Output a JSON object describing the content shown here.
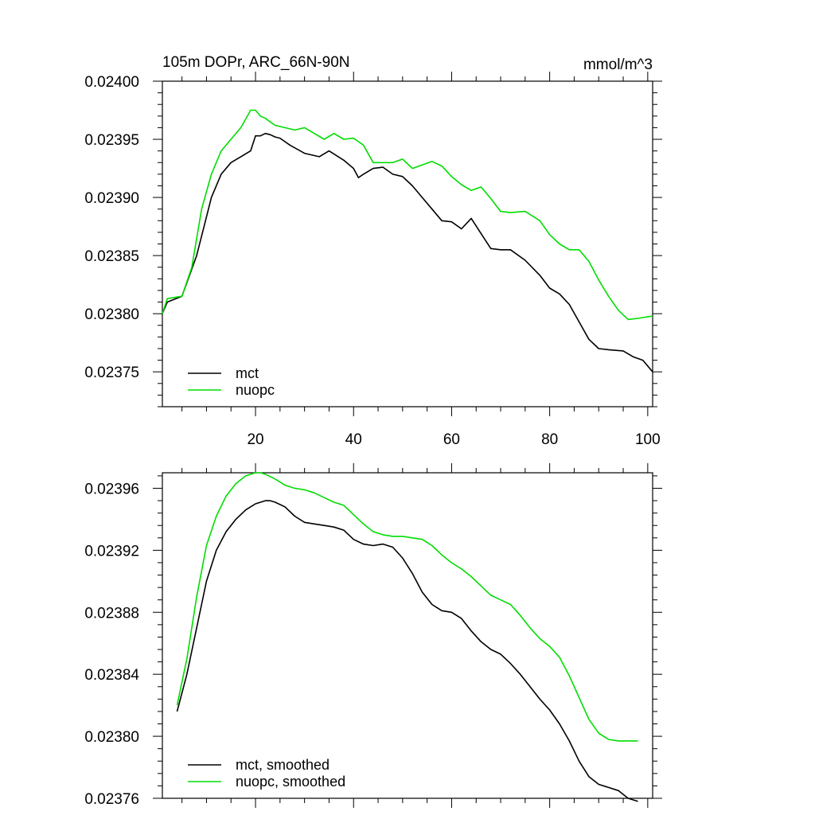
{
  "chart_data": [
    {
      "type": "line",
      "title": "105m DOPr, ARC_66N-90N",
      "units": "mmol/m^3",
      "xlabel": "",
      "ylabel": "",
      "xlim": [
        1,
        101
      ],
      "ylim": [
        0.02372,
        0.024
      ],
      "x_ticks": [
        "20",
        "40",
        "60",
        "80",
        "100"
      ],
      "y_ticks": [
        "0.02400",
        "0.02395",
        "0.02390",
        "0.02385",
        "0.02380",
        "0.02375"
      ],
      "legend": [
        "mct",
        "nuopc"
      ],
      "legend_position": "bottom-left",
      "series": [
        {
          "name": "mct",
          "color": "#000000",
          "x": [
            1,
            2,
            5,
            8,
            11,
            13,
            15,
            17,
            19,
            20,
            21,
            22,
            23,
            24,
            25,
            27,
            30,
            33,
            35,
            38,
            40,
            41,
            42,
            44,
            46,
            48,
            50,
            52,
            54,
            56,
            58,
            60,
            62,
            64,
            66,
            68,
            70,
            72,
            75,
            78,
            80,
            82,
            84,
            86,
            88,
            90,
            92,
            95,
            97,
            99,
            101
          ],
          "values": [
            0.0238,
            0.02381,
            0.023815,
            0.02385,
            0.0239,
            0.02392,
            0.02393,
            0.023935,
            0.02394,
            0.023953,
            0.023953,
            0.023955,
            0.023954,
            0.023952,
            0.023951,
            0.023945,
            0.023938,
            0.023935,
            0.02394,
            0.023932,
            0.023925,
            0.023917,
            0.02392,
            0.023925,
            0.023926,
            0.02392,
            0.023918,
            0.02391,
            0.0239,
            0.02389,
            0.02388,
            0.023879,
            0.023873,
            0.023882,
            0.023869,
            0.023856,
            0.023855,
            0.023855,
            0.023846,
            0.023833,
            0.023822,
            0.023817,
            0.023808,
            0.023793,
            0.023778,
            0.02377,
            0.023769,
            0.023768,
            0.023763,
            0.02376,
            0.02375
          ]
        },
        {
          "name": "nuopc",
          "color": "#00dd00",
          "x": [
            1,
            2,
            5,
            7,
            9,
            11,
            13,
            15,
            17,
            19,
            20,
            21,
            22,
            24,
            26,
            28,
            30,
            32,
            34,
            36,
            38,
            40,
            42,
            44,
            46,
            48,
            50,
            52,
            54,
            56,
            58,
            60,
            62,
            64,
            66,
            68,
            70,
            72,
            75,
            78,
            80,
            82,
            84,
            86,
            88,
            90,
            92,
            94,
            96,
            98,
            101
          ],
          "values": [
            0.0238,
            0.023813,
            0.023815,
            0.02384,
            0.02389,
            0.02392,
            0.02394,
            0.02395,
            0.02396,
            0.023975,
            0.023975,
            0.02397,
            0.023968,
            0.023962,
            0.02396,
            0.023958,
            0.02396,
            0.023955,
            0.02395,
            0.023955,
            0.02395,
            0.023951,
            0.023945,
            0.02393,
            0.02393,
            0.02393,
            0.023933,
            0.023925,
            0.023928,
            0.023931,
            0.023927,
            0.023918,
            0.023911,
            0.023906,
            0.023909,
            0.023899,
            0.023888,
            0.023887,
            0.023888,
            0.02388,
            0.023868,
            0.02386,
            0.023855,
            0.023855,
            0.023845,
            0.023829,
            0.023815,
            0.023803,
            0.023795,
            0.023796,
            0.023798
          ]
        }
      ]
    },
    {
      "type": "line",
      "title": "",
      "xlabel": "",
      "ylabel": "",
      "xlim": [
        1,
        101
      ],
      "ylim": [
        0.02376,
        0.02397
      ],
      "x_ticks": [],
      "y_ticks": [
        "0.02396",
        "0.02392",
        "0.02388",
        "0.02384",
        "0.02380",
        "0.02376"
      ],
      "legend": [
        "mct, smoothed",
        "nuopc, smoothed"
      ],
      "legend_position": "bottom-left",
      "series": [
        {
          "name": "mct, smoothed",
          "color": "#000000",
          "x": [
            4,
            6,
            8,
            10,
            12,
            14,
            16,
            18,
            20,
            22,
            23,
            24,
            26,
            28,
            30,
            32,
            34,
            36,
            38,
            40,
            42,
            44,
            46,
            48,
            50,
            52,
            54,
            56,
            58,
            60,
            62,
            64,
            66,
            68,
            70,
            72,
            74,
            76,
            78,
            80,
            82,
            84,
            86,
            88,
            90,
            92,
            94,
            96,
            98
          ],
          "values": [
            0.023816,
            0.02384,
            0.02387,
            0.0239,
            0.02392,
            0.023932,
            0.02394,
            0.023946,
            0.02395,
            0.023952,
            0.023952,
            0.023951,
            0.023948,
            0.023942,
            0.023938,
            0.023937,
            0.023936,
            0.023935,
            0.023933,
            0.023927,
            0.023924,
            0.023923,
            0.023924,
            0.023922,
            0.023915,
            0.023905,
            0.023893,
            0.023885,
            0.023881,
            0.02388,
            0.023876,
            0.023868,
            0.023861,
            0.023856,
            0.023853,
            0.023847,
            0.02384,
            0.023832,
            0.023824,
            0.023817,
            0.023808,
            0.023797,
            0.023784,
            0.023774,
            0.023769,
            0.023767,
            0.023765,
            0.02376,
            0.023758
          ]
        },
        {
          "name": "nuopc, smoothed",
          "color": "#00dd00",
          "x": [
            4,
            6,
            8,
            10,
            12,
            14,
            16,
            18,
            20,
            21,
            22,
            24,
            26,
            28,
            30,
            32,
            34,
            36,
            38,
            40,
            42,
            44,
            46,
            48,
            50,
            52,
            54,
            56,
            58,
            60,
            62,
            64,
            66,
            68,
            70,
            72,
            74,
            76,
            78,
            80,
            82,
            84,
            86,
            88,
            90,
            92,
            94,
            96,
            98
          ],
          "values": [
            0.02382,
            0.02385,
            0.02389,
            0.023923,
            0.023942,
            0.023955,
            0.023963,
            0.023968,
            0.02397,
            0.02397,
            0.023969,
            0.023966,
            0.023962,
            0.02396,
            0.023959,
            0.023957,
            0.023954,
            0.023951,
            0.023949,
            0.023943,
            0.023937,
            0.023932,
            0.02393,
            0.023929,
            0.023929,
            0.023928,
            0.023927,
            0.023923,
            0.023917,
            0.023912,
            0.023908,
            0.023903,
            0.023897,
            0.023891,
            0.023888,
            0.023885,
            0.023878,
            0.02387,
            0.023863,
            0.023858,
            0.023851,
            0.023839,
            0.023825,
            0.023811,
            0.023802,
            0.023798,
            0.023797,
            0.023797,
            0.023797
          ]
        }
      ]
    }
  ]
}
